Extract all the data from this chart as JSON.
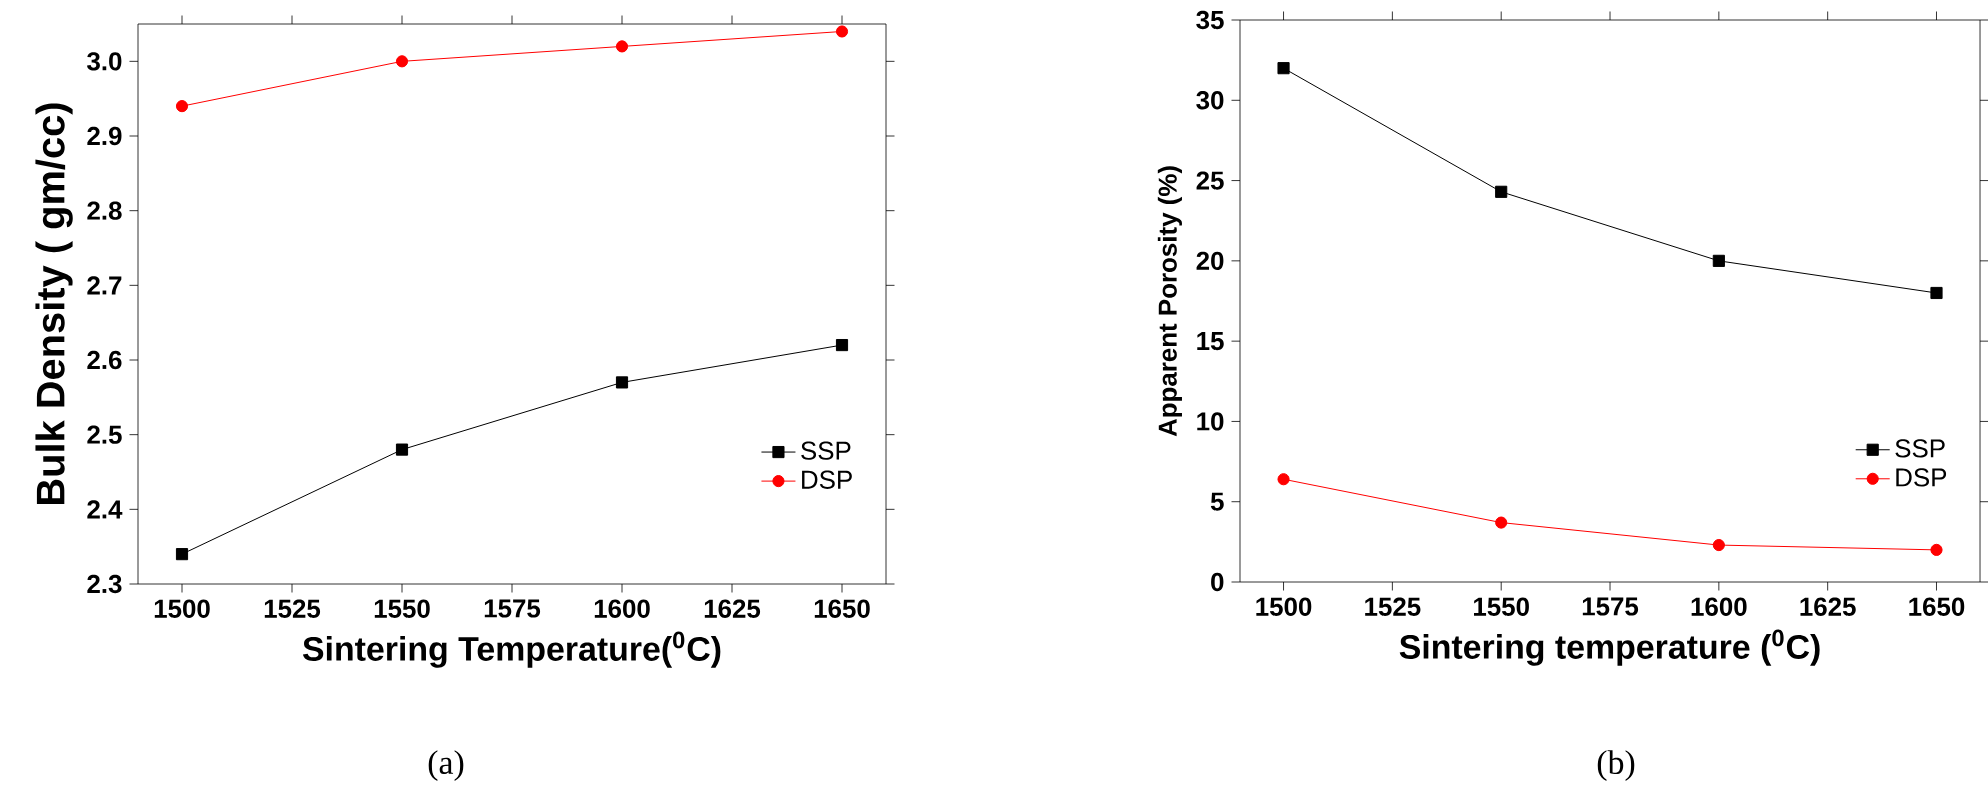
{
  "chart_data": [
    {
      "type": "line",
      "xlabel": "Sintering Temperature($^{0}$C)",
      "ylabel": "Bulk Density ( gm/cc)",
      "x": [
        1500,
        1550,
        1600,
        1650
      ],
      "series": [
        {
          "name": "SSP",
          "color": "#000000",
          "marker": "square",
          "values": [
            2.34,
            2.48,
            2.57,
            2.62
          ]
        },
        {
          "name": "DSP",
          "color": "#ff0000",
          "marker": "circle",
          "values": [
            2.94,
            3.0,
            3.02,
            3.04
          ]
        }
      ],
      "xlim": [
        1490,
        1660
      ],
      "ylim": [
        2.3,
        3.05
      ],
      "xticks": [
        1500,
        1525,
        1550,
        1575,
        1600,
        1625,
        1650
      ],
      "yticks": [
        2.3,
        2.4,
        2.5,
        2.6,
        2.7,
        2.8,
        2.9,
        {
          "value": 3.0,
          "label": "3.0"
        }
      ],
      "legend": "right",
      "annotations": [
        "(a)"
      ]
    },
    {
      "type": "line",
      "xlabel": "Sintering temperature ($^{0}$C)",
      "ylabel": "Apparent Porosity (%)",
      "x": [
        1500,
        1550,
        1600,
        1650
      ],
      "series": [
        {
          "name": "SSP",
          "color": "#000000",
          "marker": "square",
          "values": [
            32.0,
            24.3,
            20.0,
            18.0
          ]
        },
        {
          "name": "DSP",
          "color": "#ff0000",
          "marker": "circle",
          "values": [
            6.4,
            3.7,
            2.3,
            2.0
          ]
        }
      ],
      "xlim": [
        1490,
        1660
      ],
      "ylim": [
        0,
        35
      ],
      "xticks": [
        1500,
        1525,
        1550,
        1575,
        1600,
        1625,
        1650
      ],
      "yticks": [
        0,
        5,
        10,
        15,
        20,
        25,
        30,
        35
      ],
      "legend": "right",
      "annotations": [
        "(b)"
      ]
    }
  ]
}
